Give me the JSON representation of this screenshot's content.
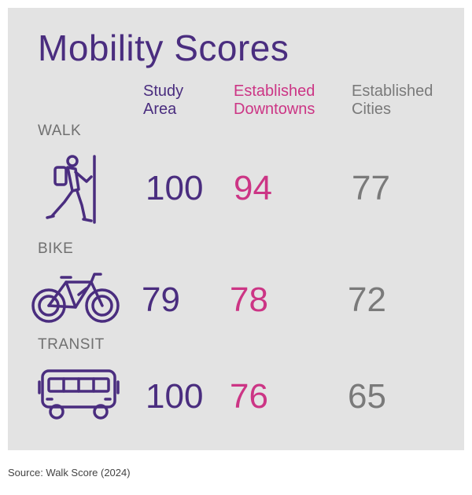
{
  "title": "Mobility Scores",
  "columns": {
    "study": [
      "Study",
      "Area"
    ],
    "downtowns": [
      "Established",
      "Downtowns"
    ],
    "cities": [
      "Established",
      "Cities"
    ]
  },
  "rows": [
    {
      "label": "WALK",
      "icon": "hiker-icon",
      "study": "100",
      "downtowns": "94",
      "cities": "77"
    },
    {
      "label": "BIKE",
      "icon": "bicycle-icon",
      "study": "79",
      "downtowns": "78",
      "cities": "72"
    },
    {
      "label": "TRANSIT",
      "icon": "bus-icon",
      "study": "100",
      "downtowns": "76",
      "cities": "65"
    }
  ],
  "source": "Source: Walk Score (2024)",
  "colors": {
    "study": "#4a2d7f",
    "downtowns": "#cc3585",
    "cities": "#7a7a7a",
    "panel": "#e3e3e3"
  },
  "chart_data": {
    "type": "table",
    "title": "Mobility Scores",
    "categories": [
      "WALK",
      "BIKE",
      "TRANSIT"
    ],
    "series": [
      {
        "name": "Study Area",
        "values": [
          100,
          79,
          100
        ]
      },
      {
        "name": "Established Downtowns",
        "values": [
          94,
          78,
          76
        ]
      },
      {
        "name": "Established Cities",
        "values": [
          77,
          72,
          65
        ]
      }
    ]
  }
}
